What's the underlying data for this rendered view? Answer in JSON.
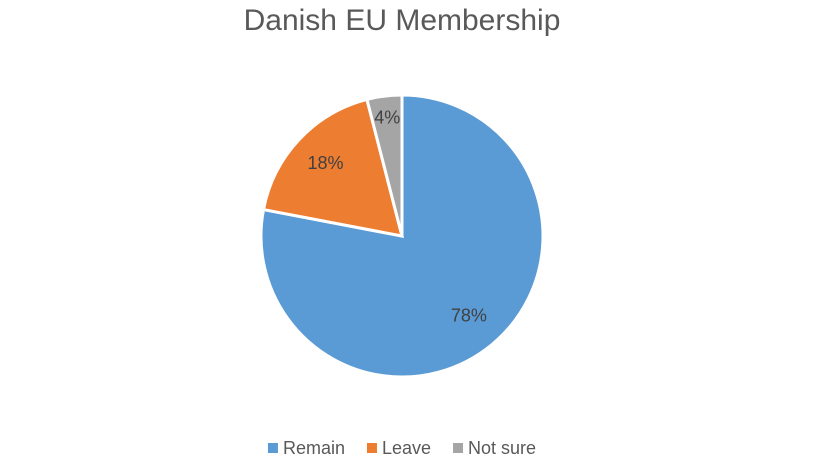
{
  "chart_data": {
    "type": "pie",
    "title": "Danish EU Membership",
    "categories": [
      "Remain",
      "Leave",
      "Not sure"
    ],
    "values": [
      78,
      18,
      4
    ],
    "value_labels": [
      "78%",
      "18%",
      "4%"
    ],
    "colors": [
      "#5b9bd5",
      "#ed7d31",
      "#a5a5a5"
    ],
    "legend": "bottom"
  }
}
